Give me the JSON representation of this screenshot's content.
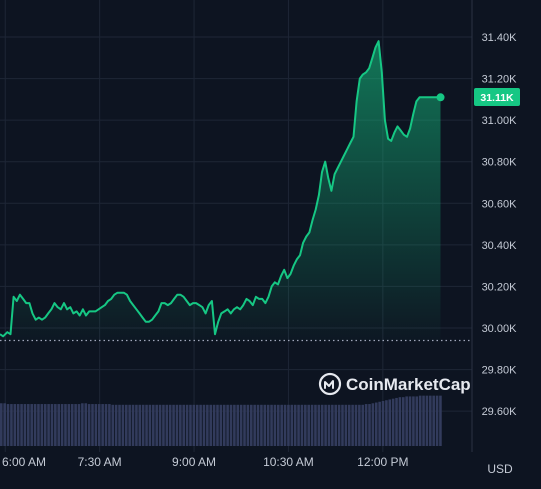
{
  "chart_data": {
    "type": "area",
    "x_tick_labels": [
      "6:00 AM",
      "7:30 AM",
      "9:00 AM",
      "10:30 AM",
      "12:00 PM"
    ],
    "x_tick_minutes": [
      360,
      450,
      540,
      630,
      720
    ],
    "y_tick_labels": [
      "29.60K",
      "29.80K",
      "30.00K",
      "30.20K",
      "30.40K",
      "30.60K",
      "30.80K",
      "31.00K",
      "31.20K",
      "31.40K"
    ],
    "y_tick_values": [
      29600,
      29800,
      30000,
      30200,
      30400,
      30600,
      30800,
      31000,
      31200,
      31400
    ],
    "ylim": [
      29500,
      31500
    ],
    "xlim_minutes": [
      355,
      805
    ],
    "reference_line": 29940,
    "currency": "USD",
    "current_price_label": "31.11K",
    "grid": true,
    "colors": {
      "line": "#16c784",
      "badge": "#16c784",
      "volume": "#323b5c",
      "background": "#0d1421",
      "grid": "#1e2636",
      "reference": "#a1a7bb"
    },
    "watermark": "CoinMarketCap",
    "series": [
      {
        "x_minutes": [
          355,
          358,
          362,
          365,
          368,
          371,
          374,
          377,
          380,
          383,
          386,
          389,
          392,
          395,
          398,
          401,
          404,
          407,
          410,
          413,
          416,
          419,
          422,
          425,
          428,
          431,
          434,
          437,
          440,
          443,
          446,
          449,
          452,
          455,
          458,
          461,
          464,
          467,
          470,
          473,
          476,
          479,
          482,
          485,
          488,
          491,
          494,
          497,
          500,
          503,
          506,
          509,
          512,
          515,
          518,
          521,
          524,
          527,
          530,
          533,
          536,
          539,
          542,
          545,
          548,
          551,
          554,
          557,
          560,
          563,
          566,
          569,
          572,
          575,
          578,
          581,
          584,
          587,
          590,
          593,
          596,
          599,
          602,
          605,
          608,
          611,
          614,
          617,
          620,
          623,
          626,
          629,
          632,
          635,
          638,
          641,
          644,
          647,
          650,
          653,
          656,
          659,
          662,
          665,
          668,
          671,
          674,
          677,
          680,
          683,
          686,
          689,
          692,
          695,
          698,
          701,
          704,
          707,
          710,
          713,
          716,
          719,
          722,
          725,
          728,
          731,
          734,
          737,
          740,
          743,
          746,
          749,
          752,
          755,
          758,
          761,
          764,
          767,
          770,
          773,
          775
        ],
        "values": [
          29970,
          29960,
          29980,
          29970,
          30150,
          30130,
          30160,
          30140,
          30120,
          30120,
          30070,
          30040,
          30050,
          30040,
          30050,
          30070,
          30090,
          30120,
          30100,
          30090,
          30120,
          30090,
          30100,
          30070,
          30080,
          30060,
          30090,
          30060,
          30080,
          30080,
          30080,
          30090,
          30100,
          30110,
          30130,
          30140,
          30160,
          30170,
          30170,
          30170,
          30160,
          30130,
          30110,
          30090,
          30070,
          30050,
          30030,
          30030,
          30040,
          30060,
          30080,
          30120,
          30120,
          30110,
          30120,
          30140,
          30160,
          30160,
          30150,
          30130,
          30110,
          30120,
          30120,
          30110,
          30100,
          30070,
          30110,
          30130,
          29970,
          30030,
          30070,
          30080,
          30090,
          30070,
          30090,
          30100,
          30090,
          30110,
          30140,
          30130,
          30110,
          30150,
          30140,
          30140,
          30120,
          30150,
          30200,
          30220,
          30210,
          30250,
          30280,
          30240,
          30260,
          30300,
          30330,
          30350,
          30410,
          30440,
          30460,
          30520,
          30570,
          30640,
          30750,
          30800,
          30720,
          30660,
          30740,
          30770,
          30800,
          30830,
          30860,
          30890,
          30920,
          31090,
          31200,
          31220,
          31230,
          31250,
          31300,
          31350,
          31380,
          31230,
          31000,
          30910,
          30900,
          30940,
          30970,
          30950,
          30930,
          30920,
          30960,
          31030,
          31090,
          31110,
          31110,
          31110,
          31110,
          31110,
          31110,
          31110,
          31110
        ],
        "name": ""
      }
    ],
    "volume_levels": [
      0.56,
      0.56,
      0.55,
      0.55,
      0.55,
      0.55,
      0.55,
      0.55,
      0.55,
      0.55,
      0.55,
      0.55,
      0.55,
      0.55,
      0.55,
      0.55,
      0.55,
      0.55,
      0.55,
      0.55,
      0.55,
      0.55,
      0.55,
      0.55,
      0.56,
      0.56,
      0.55,
      0.55,
      0.55,
      0.55,
      0.55,
      0.55,
      0.55,
      0.54,
      0.54,
      0.54,
      0.54,
      0.54,
      0.54,
      0.54,
      0.54,
      0.54,
      0.54,
      0.54,
      0.54,
      0.54,
      0.54,
      0.54,
      0.54,
      0.54,
      0.54,
      0.54,
      0.54,
      0.54,
      0.54,
      0.54,
      0.54,
      0.54,
      0.54,
      0.54,
      0.54,
      0.54,
      0.54,
      0.54,
      0.54,
      0.54,
      0.54,
      0.54,
      0.54,
      0.54,
      0.54,
      0.54,
      0.54,
      0.54,
      0.54,
      0.54,
      0.54,
      0.54,
      0.54,
      0.54,
      0.54,
      0.54,
      0.54,
      0.54,
      0.54,
      0.54,
      0.54,
      0.54,
      0.54,
      0.54,
      0.54,
      0.54,
      0.54,
      0.54,
      0.54,
      0.54,
      0.54,
      0.54,
      0.54,
      0.54,
      0.54,
      0.54,
      0.54,
      0.54,
      0.54,
      0.54,
      0.54,
      0.54,
      0.55,
      0.55,
      0.56,
      0.57,
      0.58,
      0.59,
      0.6,
      0.61,
      0.62,
      0.63,
      0.64,
      0.64,
      0.65,
      0.65,
      0.65,
      0.65,
      0.66,
      0.66,
      0.66,
      0.66,
      0.66,
      0.66,
      0.66
    ]
  }
}
